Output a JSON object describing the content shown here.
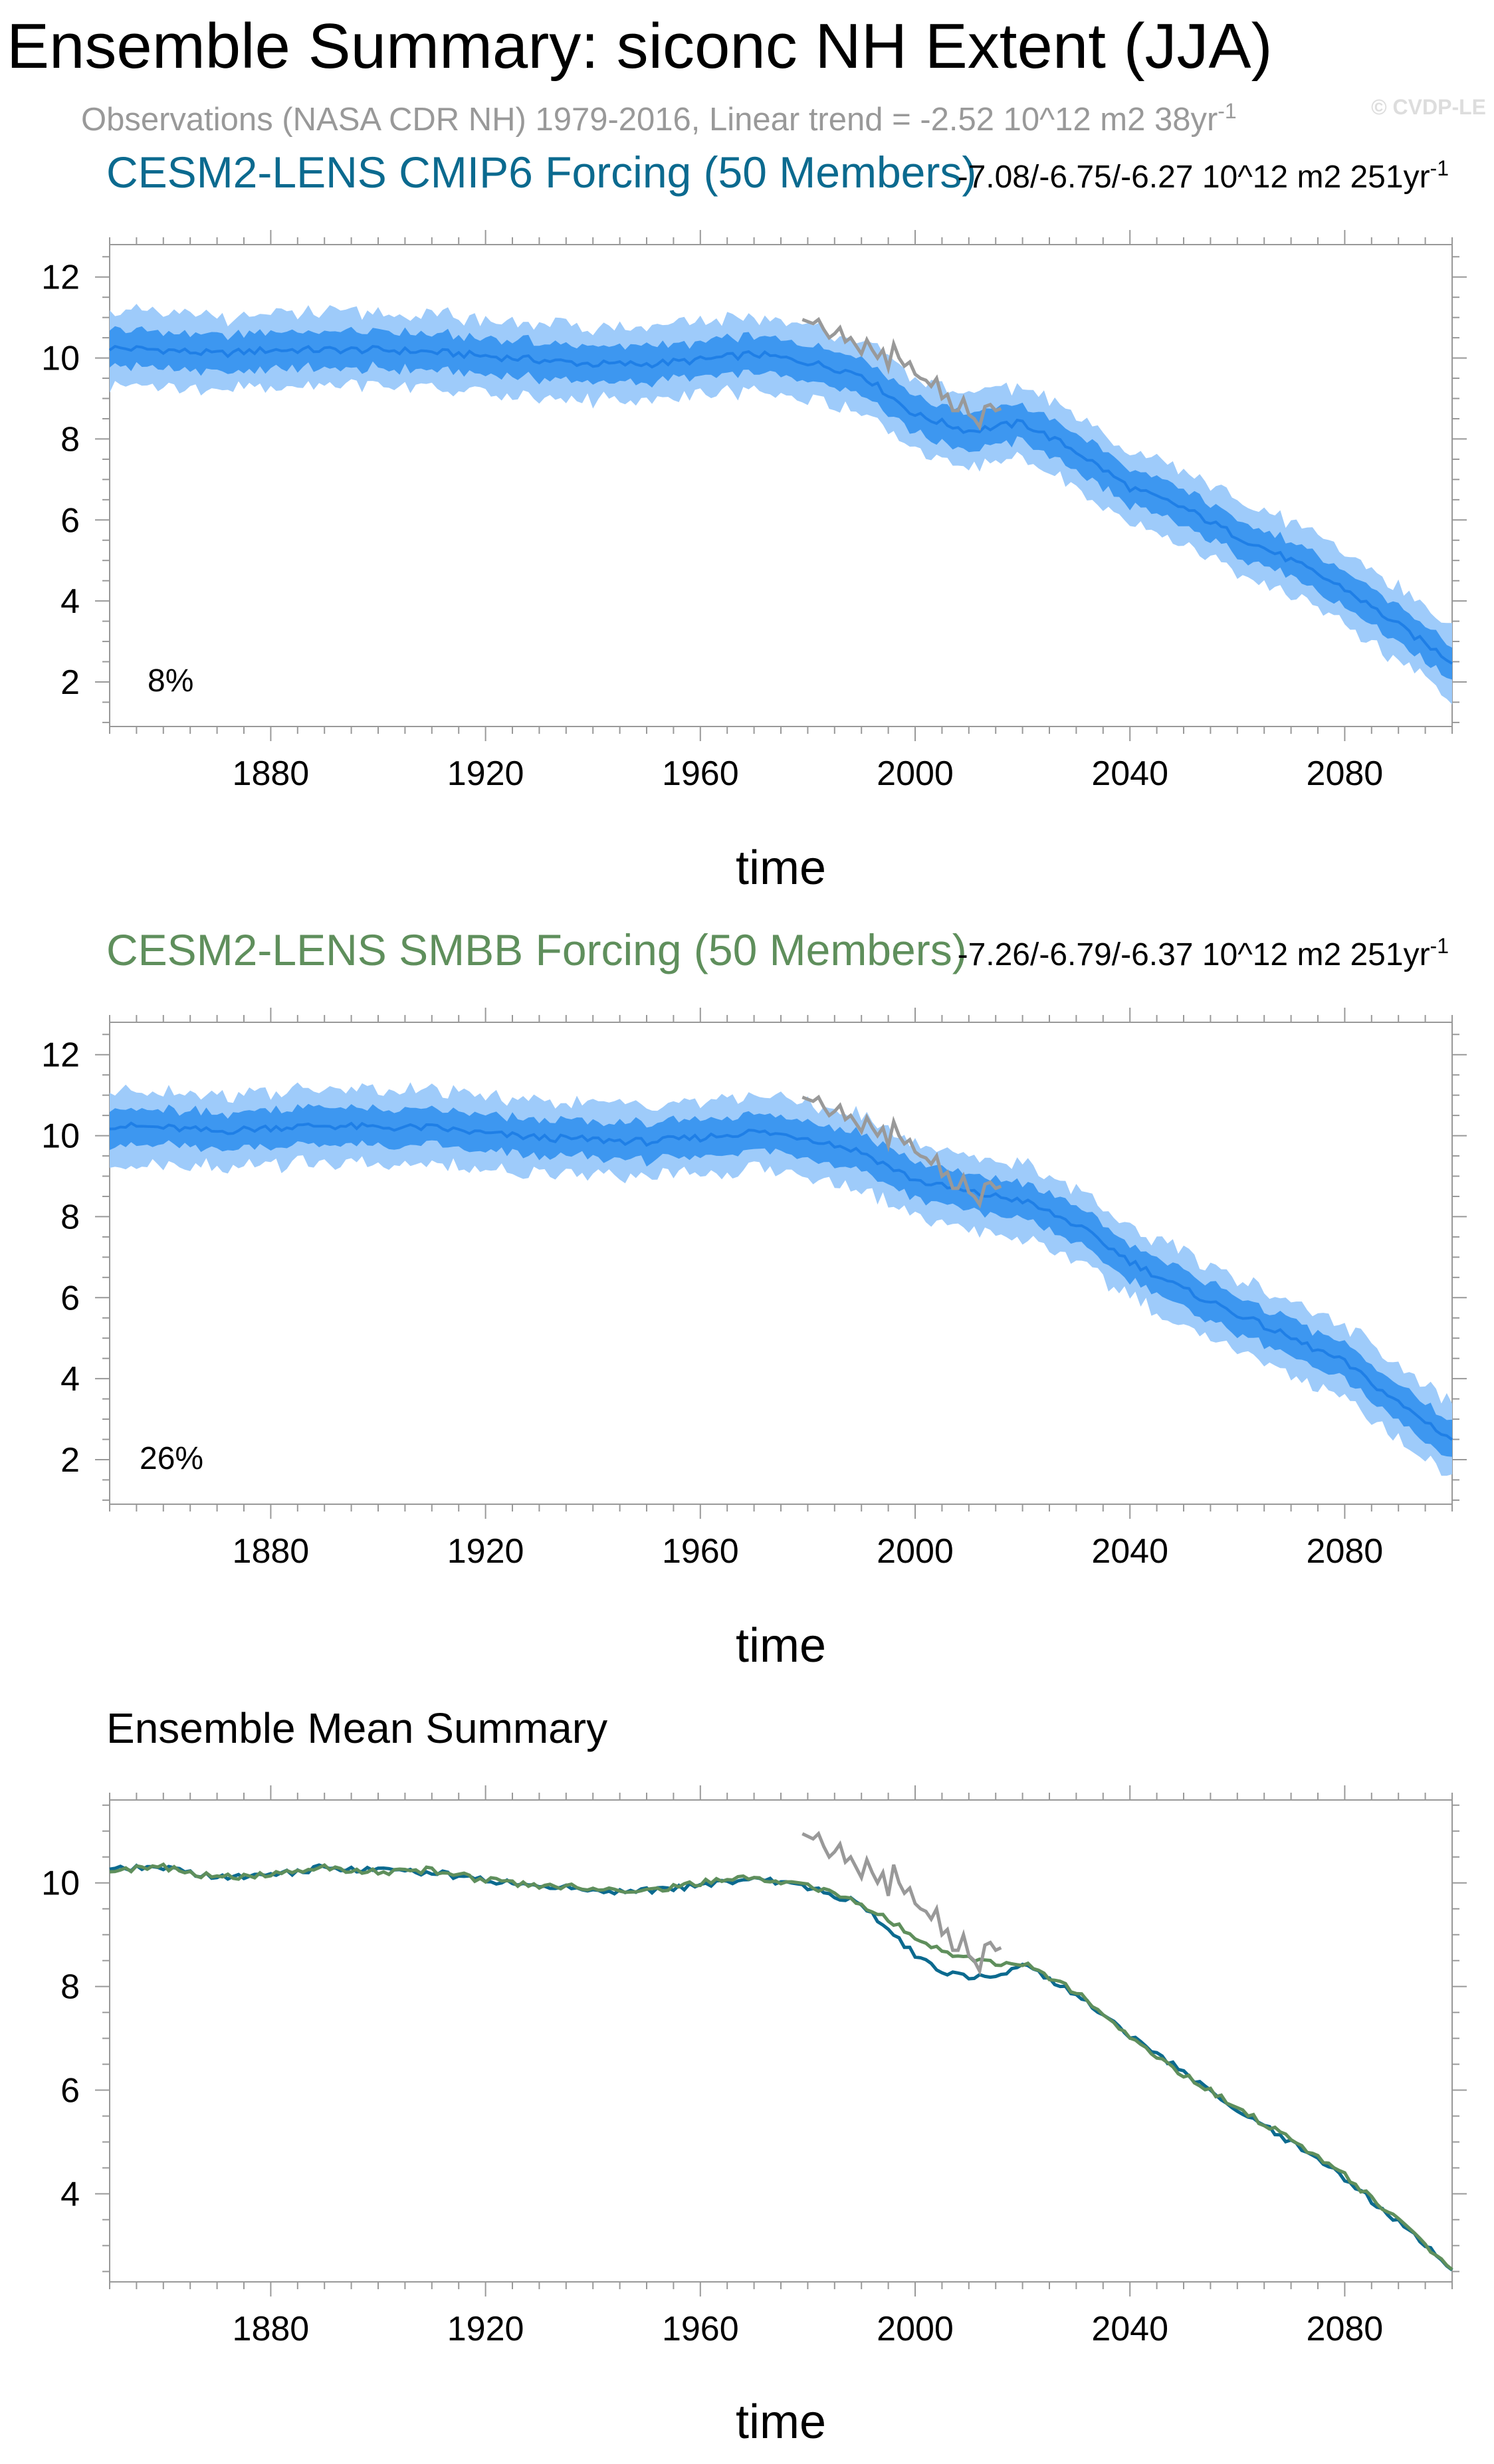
{
  "header": {
    "title": "Ensemble Summary: siconc NH Extent (JJA)",
    "obs_line": "Observations (NASA CDR NH) 1979-2016, Linear trend = -2.52 10^12 m2 38yr",
    "obs_line_sup": "-1",
    "watermark": "© CVDP-LE"
  },
  "colors": {
    "cmip6": "#0b6a8f",
    "smbb": "#5f8f5c",
    "obs": "#999999",
    "band_outer": "#9ecbfa",
    "band_inner": "#3d97f0",
    "mean_line": "#1f7fe6"
  },
  "chart_data": [
    {
      "type": "line",
      "title": "CESM2-LENS CMIP6 Forcing (50 Members)",
      "trend_text": "-7.08/-6.75/-6.27 10^12 m2 251yr",
      "trend_sup": "-1",
      "percent_label": "8%",
      "xlabel": "time",
      "ylabel": "",
      "xlim": [
        1850,
        2100
      ],
      "ylim": [
        0.9,
        12.8
      ],
      "yticks": [
        2,
        4,
        6,
        8,
        10,
        12
      ],
      "xticks": [
        1880,
        1920,
        1960,
        2000,
        2040,
        2080
      ],
      "series": [
        {
          "name": "ensemble mean",
          "years": [
            1850,
            1860,
            1870,
            1880,
            1890,
            1900,
            1910,
            1920,
            1930,
            1940,
            1950,
            1960,
            1970,
            1980,
            1990,
            2000,
            2010,
            2020,
            2030,
            2040,
            2050,
            2060,
            2070,
            2080,
            2090,
            2100
          ],
          "values": [
            10.25,
            10.2,
            10.1,
            10.2,
            10.2,
            10.2,
            10.15,
            10.05,
            9.95,
            9.85,
            9.85,
            9.95,
            10.1,
            9.9,
            9.6,
            8.6,
            8.2,
            8.4,
            7.7,
            6.8,
            6.3,
            5.6,
            5.0,
            4.3,
            3.4,
            2.5
          ]
        },
        {
          "name": "10-90% range",
          "spread": 0.45
        },
        {
          "name": "min-max range",
          "spread": 0.9
        },
        {
          "name": "Observations",
          "years": [
            1979,
            1980,
            1981,
            1982,
            1983,
            1984,
            1985,
            1986,
            1987,
            1988,
            1989,
            1990,
            1991,
            1992,
            1993,
            1994,
            1995,
            1996,
            1997,
            1998,
            1999,
            2000,
            2001,
            2002,
            2003,
            2004,
            2005,
            2006,
            2007,
            2008,
            2009,
            2010,
            2011,
            2012,
            2013,
            2014,
            2015,
            2016
          ],
          "values": [
            10.95,
            10.9,
            10.85,
            10.95,
            10.7,
            10.5,
            10.6,
            10.75,
            10.4,
            10.5,
            10.3,
            10.1,
            10.45,
            10.2,
            10.0,
            10.2,
            9.75,
            10.35,
            10.0,
            9.8,
            9.9,
            9.6,
            9.5,
            9.45,
            9.3,
            9.5,
            9.0,
            9.1,
            8.7,
            8.7,
            9.0,
            8.6,
            8.5,
            8.3,
            8.8,
            8.85,
            8.7,
            8.75
          ]
        }
      ]
    },
    {
      "type": "line",
      "title": "CESM2-LENS SMBB Forcing (50 Members)",
      "trend_text": "-7.26/-6.79/-6.37 10^12 m2 251yr",
      "trend_sup": "-1",
      "percent_label": "26%",
      "xlabel": "time",
      "ylabel": "",
      "xlim": [
        1850,
        2100
      ],
      "ylim": [
        0.9,
        12.8
      ],
      "yticks": [
        2,
        4,
        6,
        8,
        10,
        12
      ],
      "xticks": [
        1880,
        1920,
        1960,
        2000,
        2040,
        2080
      ],
      "series": [
        {
          "name": "ensemble mean",
          "years": [
            1850,
            1860,
            1870,
            1880,
            1890,
            1900,
            1910,
            1920,
            1930,
            1940,
            1950,
            1960,
            1970,
            1980,
            1990,
            2000,
            2010,
            2020,
            2030,
            2040,
            2050,
            2060,
            2070,
            2080,
            2090,
            2100
          ],
          "values": [
            10.25,
            10.2,
            10.1,
            10.2,
            10.25,
            10.2,
            10.2,
            10.05,
            9.95,
            9.9,
            9.85,
            9.95,
            10.1,
            9.95,
            9.6,
            8.9,
            8.6,
            8.4,
            7.8,
            6.9,
            6.2,
            5.6,
            5.0,
            4.4,
            3.4,
            2.5
          ]
        },
        {
          "name": "10-90% range",
          "spread": 0.45
        },
        {
          "name": "min-max range",
          "spread": 0.9
        },
        {
          "name": "Observations",
          "years": [
            1979,
            1980,
            1981,
            1982,
            1983,
            1984,
            1985,
            1986,
            1987,
            1988,
            1989,
            1990,
            1991,
            1992,
            1993,
            1994,
            1995,
            1996,
            1997,
            1998,
            1999,
            2000,
            2001,
            2002,
            2003,
            2004,
            2005,
            2006,
            2007,
            2008,
            2009,
            2010,
            2011,
            2012,
            2013,
            2014,
            2015,
            2016
          ],
          "values": [
            10.95,
            10.9,
            10.85,
            10.95,
            10.7,
            10.5,
            10.6,
            10.75,
            10.4,
            10.5,
            10.3,
            10.1,
            10.45,
            10.2,
            10.0,
            10.2,
            9.75,
            10.35,
            10.0,
            9.8,
            9.9,
            9.6,
            9.5,
            9.45,
            9.3,
            9.5,
            9.0,
            9.1,
            8.7,
            8.7,
            9.0,
            8.6,
            8.5,
            8.3,
            8.8,
            8.85,
            8.7,
            8.75
          ]
        }
      ]
    },
    {
      "type": "line",
      "title": "Ensemble Mean Summary",
      "xlabel": "time",
      "ylabel": "",
      "xlim": [
        1850,
        2100
      ],
      "ylim": [
        2.3,
        11.6
      ],
      "yticks": [
        4,
        6,
        8,
        10
      ],
      "xticks": [
        1880,
        1920,
        1960,
        2000,
        2040,
        2080
      ],
      "series": [
        {
          "name": "CESM2-LENS CMIP6 Forcing",
          "years": [
            1850,
            1860,
            1870,
            1880,
            1890,
            1900,
            1910,
            1920,
            1930,
            1940,
            1950,
            1960,
            1970,
            1980,
            1990,
            2000,
            2005,
            2010,
            2015,
            2020,
            2030,
            2040,
            2050,
            2060,
            2070,
            2080,
            2090,
            2100
          ],
          "values": [
            10.25,
            10.3,
            10.1,
            10.15,
            10.3,
            10.25,
            10.2,
            10.05,
            9.95,
            9.85,
            9.85,
            9.95,
            10.1,
            9.9,
            9.6,
            8.6,
            8.3,
            8.2,
            8.2,
            8.45,
            7.85,
            7.05,
            6.35,
            5.6,
            5.0,
            4.3,
            3.45,
            2.55
          ]
        },
        {
          "name": "CESM2-LENS SMBB Forcing",
          "years": [
            1850,
            1860,
            1870,
            1880,
            1890,
            1900,
            1910,
            1920,
            1930,
            1940,
            1950,
            1960,
            1970,
            1980,
            1990,
            2000,
            2005,
            2010,
            2015,
            2020,
            2030,
            2040,
            2050,
            2060,
            2070,
            2080,
            2090,
            2100
          ],
          "values": [
            10.25,
            10.3,
            10.1,
            10.15,
            10.3,
            10.2,
            10.25,
            10.05,
            9.95,
            9.9,
            9.85,
            10.0,
            10.1,
            9.95,
            9.6,
            8.95,
            8.7,
            8.55,
            8.45,
            8.45,
            7.9,
            7.0,
            6.3,
            5.65,
            5.05,
            4.35,
            3.5,
            2.55
          ]
        },
        {
          "name": "Observations",
          "years": [
            1979,
            1980,
            1981,
            1982,
            1983,
            1984,
            1985,
            1986,
            1987,
            1988,
            1989,
            1990,
            1991,
            1992,
            1993,
            1994,
            1995,
            1996,
            1997,
            1998,
            1999,
            2000,
            2001,
            2002,
            2003,
            2004,
            2005,
            2006,
            2007,
            2008,
            2009,
            2010,
            2011,
            2012,
            2013,
            2014,
            2015,
            2016
          ],
          "values": [
            10.95,
            10.9,
            10.85,
            10.95,
            10.7,
            10.5,
            10.6,
            10.75,
            10.4,
            10.5,
            10.3,
            10.1,
            10.45,
            10.2,
            10.0,
            10.2,
            9.75,
            10.35,
            10.0,
            9.8,
            9.9,
            9.6,
            9.5,
            9.45,
            9.3,
            9.5,
            9.0,
            9.1,
            8.7,
            8.7,
            9.0,
            8.6,
            8.5,
            8.3,
            8.8,
            8.85,
            8.7,
            8.75
          ]
        }
      ]
    }
  ]
}
